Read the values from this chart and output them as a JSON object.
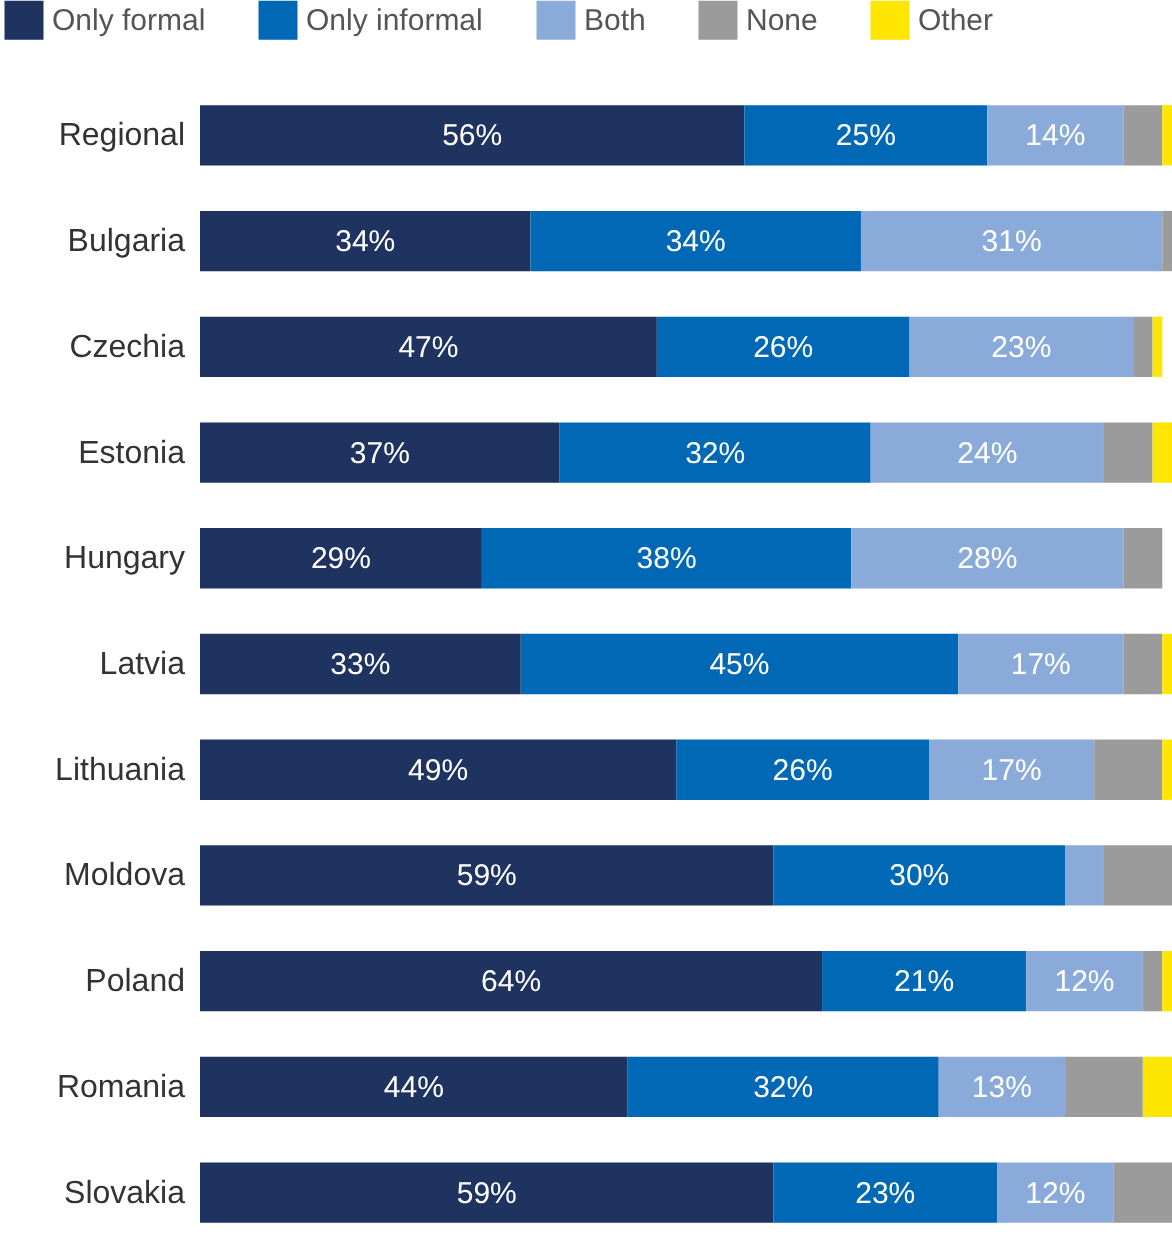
{
  "chart_data": {
    "type": "bar",
    "orientation": "horizontal",
    "stacked": true,
    "legend": "top",
    "tick_labels": "y",
    "xlim": [
      0,
      100
    ],
    "categories": [
      "Regional",
      "Bulgaria",
      "Czechia",
      "Estonia",
      "Hungary",
      "Latvia",
      "Lithuania",
      "Moldova",
      "Poland",
      "Romania",
      "Slovakia"
    ],
    "series": [
      {
        "name": "Only formal",
        "color": "#1f3360",
        "values": [
          56,
          34,
          47,
          37,
          29,
          33,
          49,
          59,
          64,
          44,
          59
        ],
        "value_labels": [
          "56%",
          "34%",
          "47%",
          "37%",
          "29%",
          "33%",
          "49%",
          "59%",
          "64%",
          "44%",
          "59%"
        ]
      },
      {
        "name": "Only informal",
        "color": "#0068b4",
        "values": [
          25,
          34,
          26,
          32,
          38,
          45,
          26,
          30,
          21,
          32,
          23
        ],
        "value_labels": [
          "25%",
          "34%",
          "26%",
          "32%",
          "38%",
          "45%",
          "26%",
          "30%",
          "21%",
          "32%",
          "23%"
        ]
      },
      {
        "name": "Both",
        "color": "#8aabda",
        "values": [
          14,
          31,
          23,
          24,
          28,
          17,
          17,
          4,
          12,
          13,
          12
        ],
        "value_labels": [
          "14%",
          "31%",
          "23%",
          "24%",
          "28%",
          "17%",
          "17%",
          null,
          "12%",
          "13%",
          "12%"
        ]
      },
      {
        "name": "None",
        "color": "#9b9b9b",
        "values": [
          4,
          1,
          2,
          5,
          4,
          4,
          7,
          7,
          2,
          8,
          6
        ]
      },
      {
        "name": "Other",
        "color": "#ffe600",
        "values": [
          1,
          null,
          1,
          2,
          null,
          1,
          1,
          null,
          1,
          3,
          null
        ]
      }
    ]
  }
}
